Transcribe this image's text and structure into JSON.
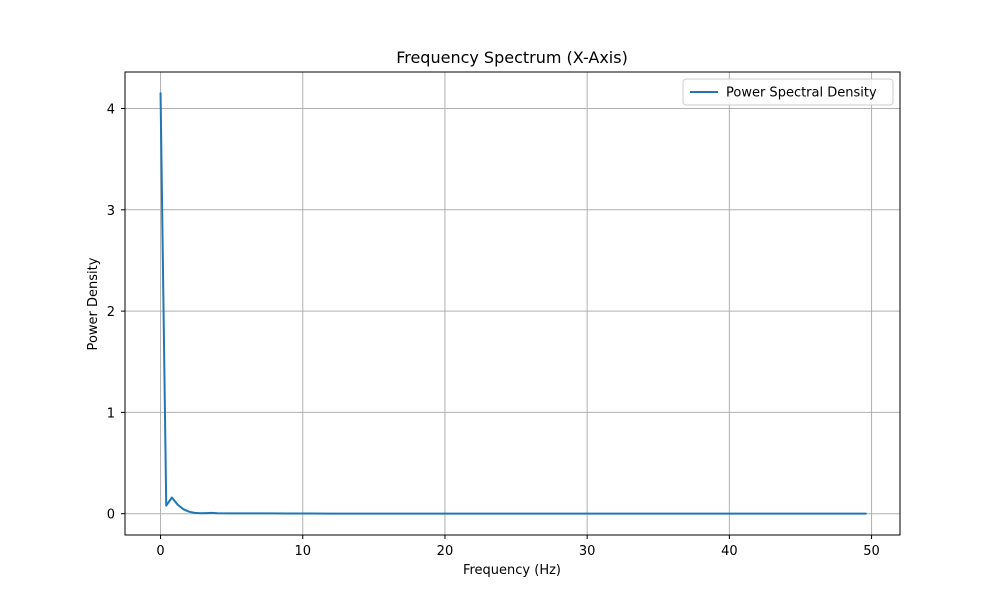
{
  "chart_data": {
    "type": "line",
    "title": "Frequency Spectrum (X-Axis)",
    "xlabel": "Frequency (Hz)",
    "ylabel": "Power Density",
    "xlim": [
      -2.5,
      52.0
    ],
    "ylim": [
      -0.21,
      4.36
    ],
    "xticks": [
      0,
      10,
      20,
      30,
      40,
      50
    ],
    "yticks": [
      0,
      1,
      2,
      3,
      4
    ],
    "grid": true,
    "legend_position": "top-right",
    "series": [
      {
        "name": "Power Spectral Density",
        "color": "#1f77b4",
        "x": [
          0.0,
          0.4,
          0.8,
          1.2,
          1.6,
          2.0,
          2.4,
          2.8,
          3.2,
          3.6,
          4.0,
          5.0,
          6.0,
          7.5,
          9.0,
          10.5,
          12.0,
          15.0,
          20.0,
          25.0,
          30.0,
          35.0,
          40.0,
          45.0,
          49.6
        ],
        "y": [
          4.15,
          0.08,
          0.16,
          0.09,
          0.045,
          0.02,
          0.008,
          0.005,
          0.006,
          0.008,
          0.005,
          0.003,
          0.003,
          0.004,
          0.002,
          0.002,
          0.001,
          0.001,
          0.001,
          0.001,
          0.001,
          0.001,
          0.001,
          0.001,
          0.001
        ]
      }
    ]
  }
}
